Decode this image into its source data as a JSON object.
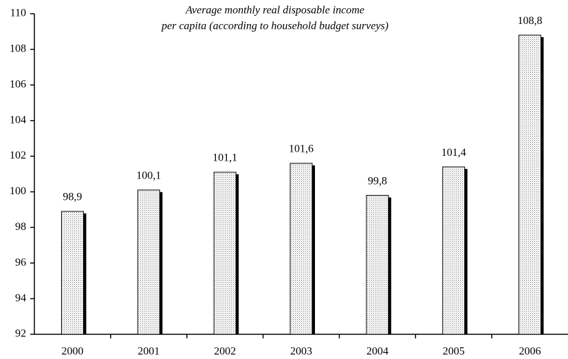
{
  "chart_data": {
    "type": "bar",
    "title": [
      "Average monthly real disposable income",
      "per capita (according to household budget surveys)"
    ],
    "categories": [
      "2000",
      "2001",
      "2002",
      "2003",
      "2004",
      "2005",
      "2006"
    ],
    "values": [
      98.9,
      100.1,
      101.1,
      101.6,
      99.8,
      101.4,
      108.8
    ],
    "value_labels": [
      "98,9",
      "100,1",
      "101,1",
      "101,6",
      "99,8",
      "101,4",
      "108,8"
    ],
    "ylim": [
      92,
      110
    ],
    "yticks": [
      92,
      94,
      96,
      98,
      100,
      102,
      104,
      106,
      108,
      110
    ],
    "color": "#ffffff",
    "grid": false
  }
}
